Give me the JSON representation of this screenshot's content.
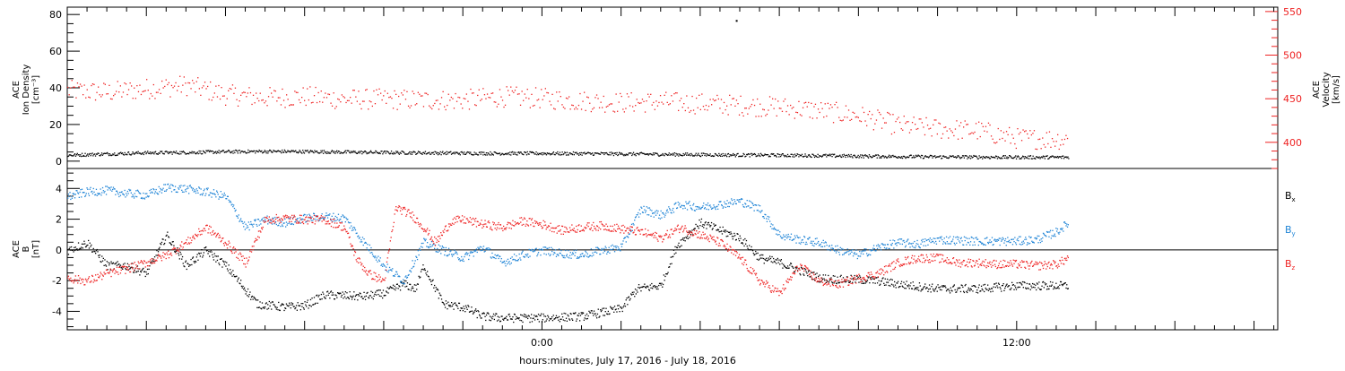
{
  "chart_data": [
    {
      "type": "scatter",
      "panel": "solar-wind",
      "ylabel_left": [
        "ACE",
        "Ion Density",
        "[cm⁻³]"
      ],
      "ylabel_right": [
        "ACE",
        "Velocity",
        "[km/s]"
      ],
      "ylim_left": [
        -4,
        84
      ],
      "ylim_right": [
        370,
        555
      ],
      "left_ticks": [
        0,
        20,
        40,
        60,
        80
      ],
      "right_ticks": [
        400,
        450,
        500,
        550
      ],
      "series": [
        {
          "axis": "left",
          "color": "#000000",
          "points": [
            [
              -12,
              3.5
            ],
            [
              -11,
              4.2
            ],
            [
              -10,
              4.8
            ],
            [
              -9,
              5.0
            ],
            [
              -8,
              5.4
            ],
            [
              -7,
              5.6
            ],
            [
              -6,
              5.5
            ],
            [
              -5,
              5.2
            ],
            [
              -4,
              5.0
            ],
            [
              -3,
              4.8
            ],
            [
              -2,
              4.6
            ],
            [
              -1,
              4.5
            ],
            [
              0,
              4.5
            ],
            [
              1,
              4.4
            ],
            [
              2,
              4.2
            ],
            [
              3,
              4.0
            ],
            [
              4,
              3.8
            ],
            [
              5,
              3.6
            ],
            [
              6,
              3.5
            ],
            [
              7,
              3.3
            ],
            [
              8,
              3.0
            ],
            [
              9,
              2.8
            ],
            [
              10,
              2.6
            ],
            [
              11,
              2.5
            ],
            [
              12,
              2.4
            ],
            [
              13.3,
              2.4
            ]
          ],
          "extra_points": [
            [
              4.9,
              77
            ]
          ]
        },
        {
          "axis": "right",
          "color": "#ee2222",
          "points": [
            [
              -12,
              460
            ],
            [
              -11,
              458
            ],
            [
              -10,
              462
            ],
            [
              -9,
              466
            ],
            [
              -8,
              455
            ],
            [
              -7,
              452
            ],
            [
              -6,
              453
            ],
            [
              -5,
              450
            ],
            [
              -4,
              450
            ],
            [
              -3,
              449
            ],
            [
              -2,
              449
            ],
            [
              -1,
              453
            ],
            [
              0,
              451
            ],
            [
              1,
              448
            ],
            [
              2,
              446
            ],
            [
              3,
              447
            ],
            [
              4,
              445
            ],
            [
              5,
              443
            ],
            [
              6,
              441
            ],
            [
              7,
              437
            ],
            [
              8,
              431
            ],
            [
              9,
              420
            ],
            [
              10,
              416
            ],
            [
              11,
              414
            ],
            [
              12,
              405
            ],
            [
              13.3,
              404
            ]
          ]
        }
      ]
    },
    {
      "type": "scatter",
      "panel": "imf",
      "ylabel_left": [
        "ACE",
        "B",
        "[nT]"
      ],
      "ylim": [
        -5.2,
        5.3
      ],
      "ticks": [
        -4,
        -2,
        0,
        2,
        4
      ],
      "legend": [
        {
          "label": "B",
          "sub": "x",
          "color": "#000000"
        },
        {
          "label": "B",
          "sub": "y",
          "color": "#1f84d6"
        },
        {
          "label": "B",
          "sub": "z",
          "color": "#ee2222"
        }
      ],
      "series": [
        {
          "name": "Bx",
          "color": "#000000",
          "points": [
            [
              -12,
              0
            ],
            [
              -11.5,
              0.5
            ],
            [
              -11,
              -1
            ],
            [
              -10.5,
              -1
            ],
            [
              -10,
              -1.5
            ],
            [
              -9.5,
              1
            ],
            [
              -9,
              -1
            ],
            [
              -8.5,
              0
            ],
            [
              -8,
              -1
            ],
            [
              -7.2,
              -3.5
            ],
            [
              -6.5,
              -3.7
            ],
            [
              -6,
              -3.6
            ],
            [
              -5.5,
              -2.9
            ],
            [
              -4.5,
              -3
            ],
            [
              -4,
              -2.8
            ],
            [
              -3.5,
              -2.2
            ],
            [
              -3.2,
              -2.5
            ],
            [
              -3,
              -1
            ],
            [
              -2.5,
              -3.5
            ],
            [
              -2,
              -3.7
            ],
            [
              -1.5,
              -4.3
            ],
            [
              -1,
              -4.4
            ],
            [
              0,
              -4.4
            ],
            [
              1,
              -4.3
            ],
            [
              2,
              -3.8
            ],
            [
              2.4,
              -2.5
            ],
            [
              3,
              -2.3
            ],
            [
              3.4,
              0.3
            ],
            [
              4,
              1.8
            ],
            [
              4.5,
              1.3
            ],
            [
              5,
              0.8
            ],
            [
              5.5,
              -0.5
            ],
            [
              6,
              -0.8
            ],
            [
              6.5,
              -1.3
            ],
            [
              7,
              -1.8
            ],
            [
              7.5,
              -1.9
            ],
            [
              8,
              -1.9
            ],
            [
              8.5,
              -2
            ],
            [
              9,
              -2.2
            ],
            [
              10,
              -2.5
            ],
            [
              11,
              -2.5
            ],
            [
              12,
              -2.3
            ],
            [
              13.3,
              -2.3
            ]
          ]
        },
        {
          "name": "By",
          "color": "#1f84d6",
          "points": [
            [
              -12,
              3.5
            ],
            [
              -11.5,
              3.8
            ],
            [
              -11,
              3.9
            ],
            [
              -10.5,
              3.7
            ],
            [
              -10,
              3.6
            ],
            [
              -9.5,
              4.1
            ],
            [
              -9,
              4
            ],
            [
              -8.5,
              3.8
            ],
            [
              -8,
              3.5
            ],
            [
              -7.5,
              1.5
            ],
            [
              -7,
              2
            ],
            [
              -6.5,
              1.8
            ],
            [
              -6,
              2.1
            ],
            [
              -5.5,
              2.2
            ],
            [
              -5,
              2.1
            ],
            [
              -4.5,
              0.5
            ],
            [
              -4,
              -1
            ],
            [
              -3.5,
              -2
            ],
            [
              -3,
              0.5
            ],
            [
              -2.5,
              0
            ],
            [
              -2,
              -0.5
            ],
            [
              -1.5,
              0.2
            ],
            [
              -1,
              -0.8
            ],
            [
              -0.5,
              -0.3
            ],
            [
              0,
              0
            ],
            [
              0.5,
              -0.2
            ],
            [
              1,
              -0.3
            ],
            [
              1.5,
              0
            ],
            [
              2,
              0.2
            ],
            [
              2.5,
              2.7
            ],
            [
              3,
              2.3
            ],
            [
              3.5,
              3
            ],
            [
              4,
              2.8
            ],
            [
              4.5,
              3
            ],
            [
              5,
              3.2
            ],
            [
              5.5,
              2.7
            ],
            [
              6,
              1
            ],
            [
              6.5,
              0.7
            ],
            [
              7,
              0.5
            ],
            [
              7.5,
              0
            ],
            [
              8,
              -0.3
            ],
            [
              8.5,
              0.2
            ],
            [
              9,
              0.5
            ],
            [
              9.5,
              0.4
            ],
            [
              10,
              0.7
            ],
            [
              11,
              0.6
            ],
            [
              12,
              0.6
            ],
            [
              12.5,
              0.7
            ],
            [
              13,
              1.2
            ],
            [
              13.3,
              1.8
            ]
          ]
        },
        {
          "name": "Bz",
          "color": "#ee2222",
          "points": [
            [
              -12,
              -1.8
            ],
            [
              -11.5,
              -2
            ],
            [
              -11,
              -1.5
            ],
            [
              -10.5,
              -1.2
            ],
            [
              -10,
              -0.8
            ],
            [
              -9.5,
              -0.3
            ],
            [
              -9,
              0.5
            ],
            [
              -8.5,
              1.5
            ],
            [
              -8,
              0.5
            ],
            [
              -7.5,
              -0.8
            ],
            [
              -7,
              2
            ],
            [
              -6.5,
              2.1
            ],
            [
              -6,
              2
            ],
            [
              -5.5,
              2
            ],
            [
              -5,
              1.5
            ],
            [
              -4.7,
              -0.5
            ],
            [
              -4.4,
              -1.5
            ],
            [
              -4,
              -2
            ],
            [
              -3.7,
              2.8
            ],
            [
              -3.3,
              2.3
            ],
            [
              -3,
              1.5
            ],
            [
              -2.7,
              0.5
            ],
            [
              -2.3,
              1.9
            ],
            [
              -2,
              2
            ],
            [
              -1.5,
              1.7
            ],
            [
              -1,
              1.5
            ],
            [
              -0.5,
              1.9
            ],
            [
              0,
              1.7
            ],
            [
              0.5,
              1.3
            ],
            [
              1,
              1.5
            ],
            [
              1.5,
              1.6
            ],
            [
              2,
              1.4
            ],
            [
              2.5,
              1.2
            ],
            [
              3,
              0.8
            ],
            [
              3.5,
              1.5
            ],
            [
              4,
              1
            ],
            [
              4.5,
              0.5
            ],
            [
              5,
              -0.5
            ],
            [
              5.5,
              -2
            ],
            [
              6,
              -2.8
            ],
            [
              6.5,
              -1
            ],
            [
              7,
              -2
            ],
            [
              7.5,
              -2.2
            ],
            [
              8,
              -1.8
            ],
            [
              8.5,
              -1.5
            ],
            [
              9,
              -0.8
            ],
            [
              9.5,
              -0.5
            ],
            [
              10,
              -0.5
            ],
            [
              10.5,
              -0.8
            ],
            [
              11,
              -0.8
            ],
            [
              11.5,
              -0.9
            ],
            [
              12,
              -0.9
            ],
            [
              12.5,
              -1
            ],
            [
              13,
              -0.9
            ],
            [
              13.3,
              -0.5
            ]
          ]
        }
      ]
    }
  ],
  "x_axis": {
    "range_hours": [
      -12,
      18.6
    ],
    "tick_labels": [
      {
        "x": 0,
        "label": "0:00"
      },
      {
        "x": 12,
        "label": "12:00"
      }
    ],
    "xlabel": "hours:minutes, July 17, 2016 - July 18, 2016"
  }
}
